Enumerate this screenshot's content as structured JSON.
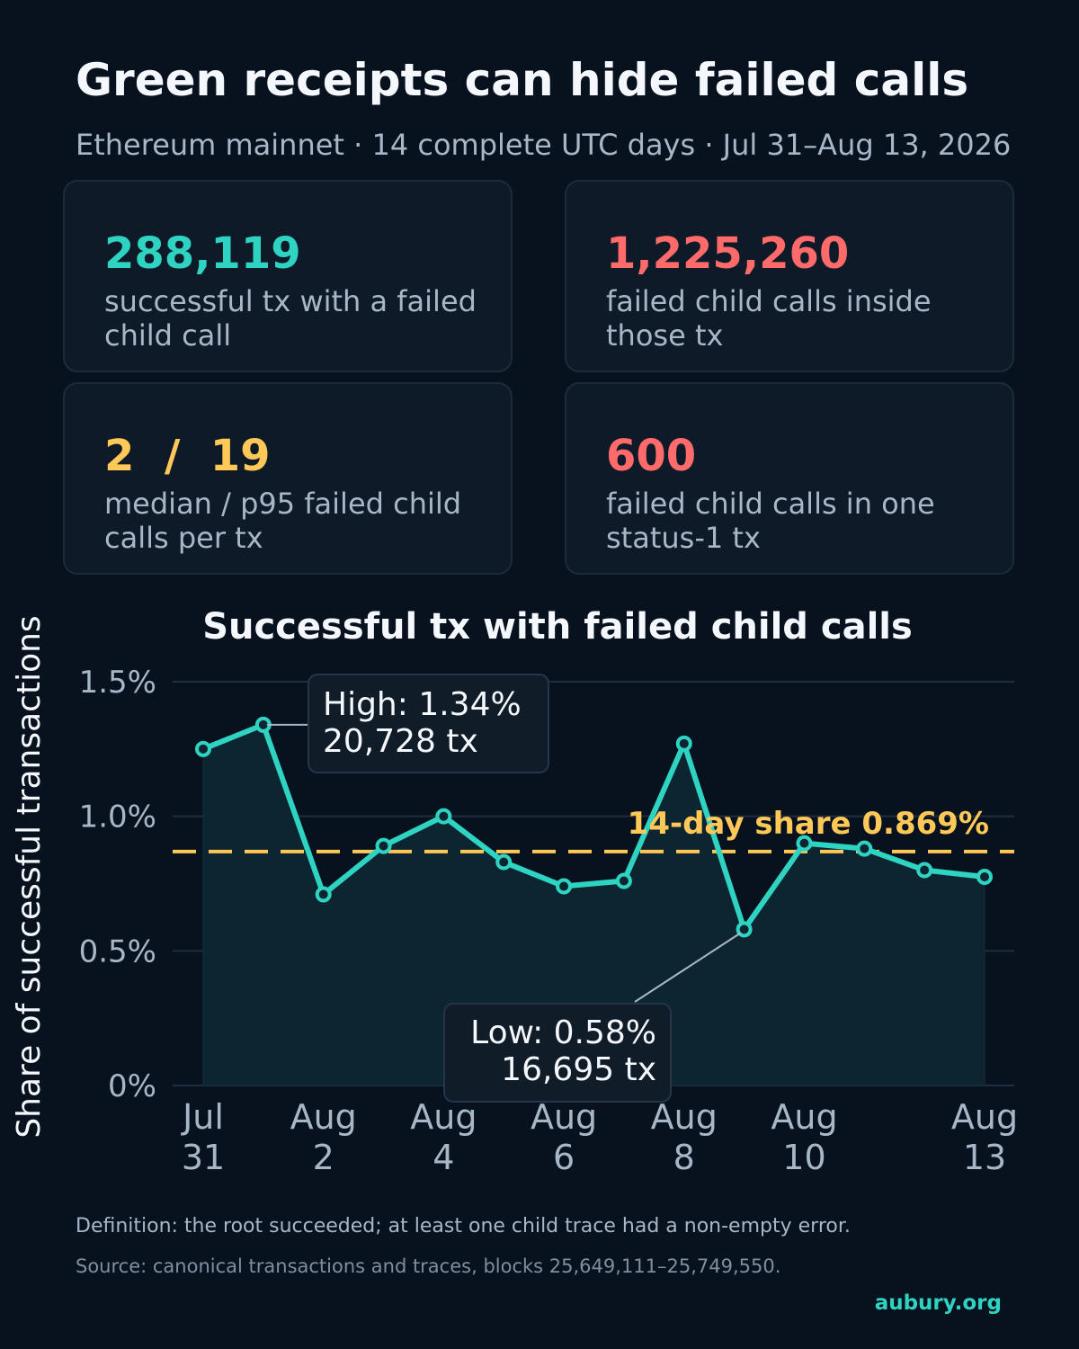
{
  "header": {
    "title": "Green receipts can hide failed calls",
    "subtitle": "Ethereum mainnet · 14 complete UTC days · Jul 31–Aug 13, 2026"
  },
  "cards": [
    {
      "value": "288,119",
      "label": "successful tx with a failed child call",
      "color": "#2ed3c2"
    },
    {
      "value": "1,225,260",
      "label": "failed child calls inside those tx",
      "color": "#ff6b6b"
    },
    {
      "value": "2  /  19",
      "label": "median / p95 failed child calls per tx",
      "color": "#ffc857"
    },
    {
      "value": "600",
      "label": "failed child calls in one status-1 tx",
      "color": "#ff6b6b"
    }
  ],
  "chart_data": {
    "type": "line",
    "title": "Successful tx with failed child calls",
    "ylabel": "Share of successful transactions",
    "xlabel": "",
    "x": [
      "Jul 31",
      "Aug 1",
      "Aug 2",
      "Aug 3",
      "Aug 4",
      "Aug 5",
      "Aug 6",
      "Aug 7",
      "Aug 8",
      "Aug 9",
      "Aug 10",
      "Aug 11",
      "Aug 12",
      "Aug 13"
    ],
    "x_ticks": [
      {
        "index": 0,
        "label": [
          "Jul",
          "31"
        ]
      },
      {
        "index": 2,
        "label": [
          "Aug",
          "2"
        ]
      },
      {
        "index": 4,
        "label": [
          "Aug",
          "4"
        ]
      },
      {
        "index": 6,
        "label": [
          "Aug",
          "6"
        ]
      },
      {
        "index": 8,
        "label": [
          "Aug",
          "8"
        ]
      },
      {
        "index": 10,
        "label": [
          "Aug",
          "10"
        ]
      },
      {
        "index": 13,
        "label": [
          "Aug",
          "13"
        ]
      }
    ],
    "series": [
      {
        "values": [
          1.25,
          1.34,
          0.71,
          0.89,
          1.0,
          0.83,
          0.74,
          0.76,
          1.27,
          0.58,
          0.9,
          0.88,
          0.8,
          0.775
        ]
      }
    ],
    "ylim": [
      0,
      1.5
    ],
    "yticks": [
      0,
      0.5,
      1.0,
      1.5
    ],
    "ytick_labels": [
      "0%",
      "0.5%",
      "1.0%",
      "1.5%"
    ],
    "grid": true,
    "reference_line": {
      "value": 0.869,
      "label": "14-day share  0.869%"
    },
    "annotations": [
      {
        "index": 1,
        "lines": [
          "High: 1.34%",
          "20,728 tx"
        ]
      },
      {
        "index": 9,
        "lines": [
          "Low: 0.58%",
          "16,695 tx"
        ]
      }
    ],
    "colors": {
      "line": "#2ed3c2",
      "reference": "#ffc857",
      "grid": "#1f2e3f",
      "tick": "#a8b7c7"
    }
  },
  "footer": {
    "definition": "Definition: the root succeeded; at least one child trace had a non-empty error.",
    "source": "Source: canonical transactions and traces, blocks 25,649,111–25,749,550.",
    "brand": "aubury.org"
  }
}
